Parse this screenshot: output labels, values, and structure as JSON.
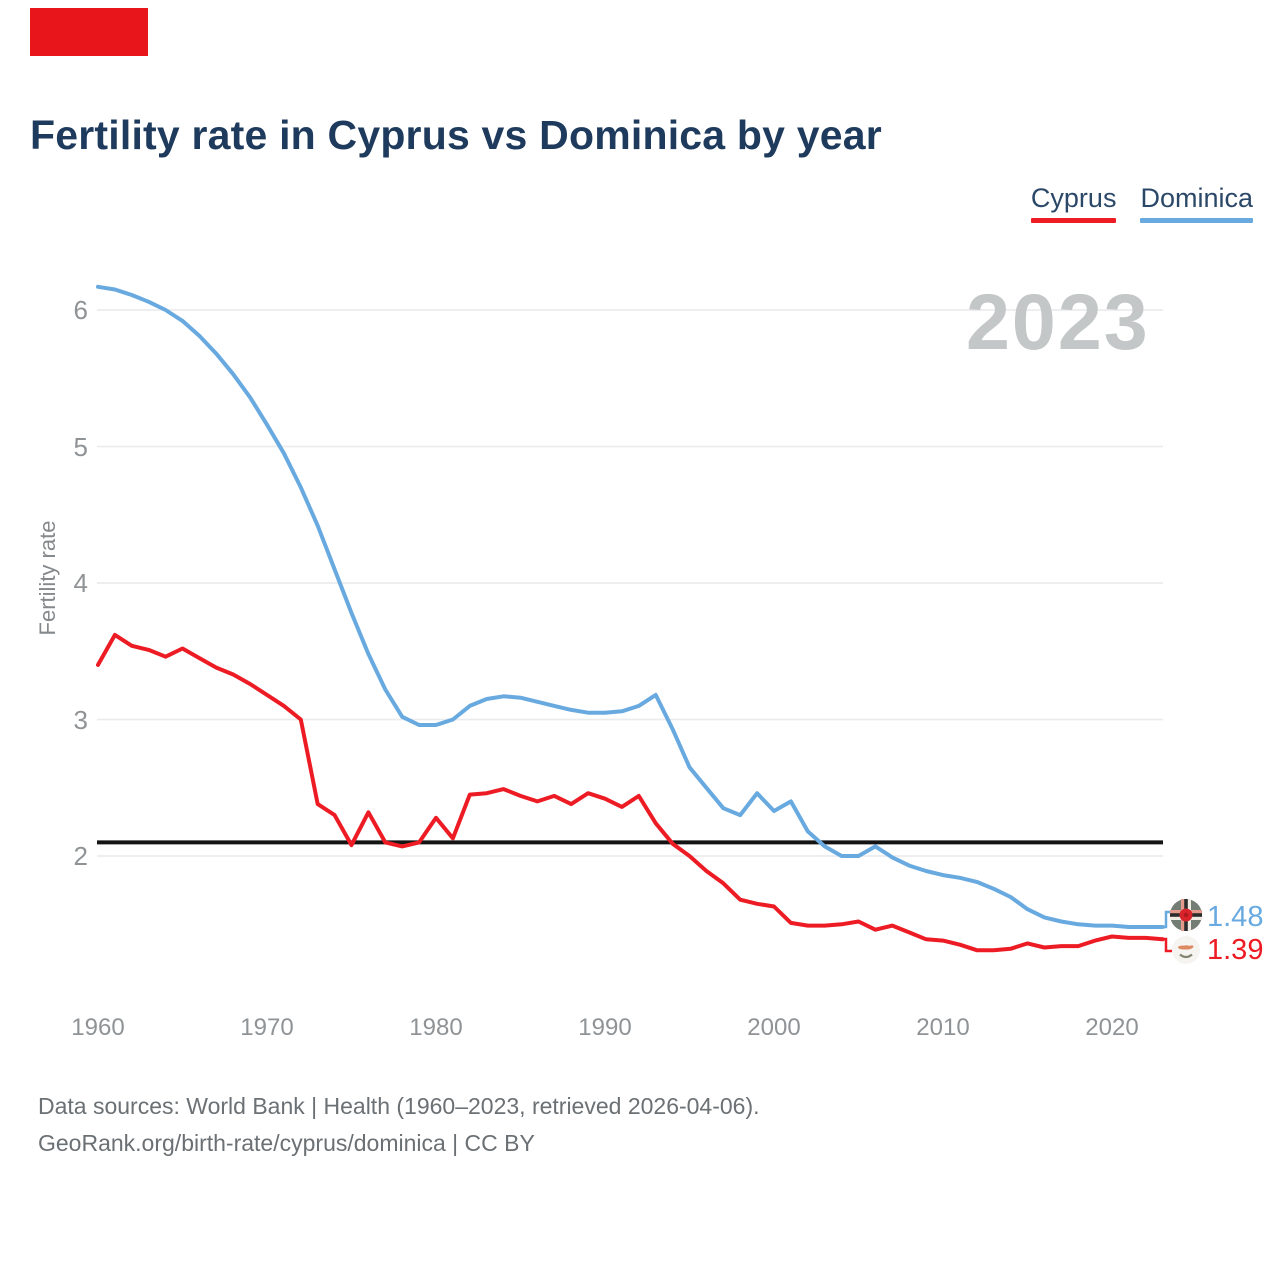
{
  "title": "Fertility rate in Cyprus vs Dominica by year",
  "watermark": "2023",
  "legend": {
    "items": [
      {
        "label": "Cyprus",
        "color": "#ed1c24"
      },
      {
        "label": "Dominica",
        "color": "#68aae0"
      }
    ]
  },
  "footer": {
    "line1": "Data sources: World Bank | Health (1960–2023, retrieved 2026-04-06).",
    "line2": "GeoRank.org/birth-rate/cyprus/dominica | CC BY"
  },
  "colors": {
    "title_text": "#1e3a5c",
    "cyprus_red": "#ed1c24",
    "dominica_blue": "#68aae0",
    "reference_line": "#141414",
    "gridline": "#ebecee",
    "watermark_gray": "#c4c7c7",
    "tick_gray": "#8f9396",
    "top_left_marker_red": "#e8151b"
  },
  "chart_data": {
    "type": "line",
    "title": "Fertility rate in Cyprus vs Dominica by year",
    "x_label": "",
    "y_label": "Fertility rate",
    "grid": "horizontal",
    "legend_position": "top-right",
    "ylim": [
      1.3,
      6.3
    ],
    "yticks": [
      2,
      3,
      4,
      5,
      6
    ],
    "xticks": [
      1960,
      1970,
      1980,
      1990,
      2000,
      2010,
      2020
    ],
    "years": {
      "start": 1960,
      "end": 2023
    },
    "reference_line": 2.1,
    "series": [
      {
        "name": "Cyprus",
        "color": "#ed1c24",
        "end_label": "1.39",
        "end_flag": "cyprus-flag",
        "values": [
          3.4,
          3.62,
          3.54,
          3.51,
          3.46,
          3.52,
          3.45,
          3.38,
          3.33,
          3.26,
          3.18,
          3.1,
          3.0,
          2.38,
          2.3,
          2.08,
          2.32,
          2.1,
          2.07,
          2.1,
          2.28,
          2.13,
          2.45,
          2.46,
          2.49,
          2.44,
          2.4,
          2.44,
          2.38,
          2.46,
          2.42,
          2.36,
          2.44,
          2.24,
          2.09,
          2.0,
          1.89,
          1.8,
          1.68,
          1.65,
          1.63,
          1.51,
          1.49,
          1.49,
          1.5,
          1.52,
          1.46,
          1.49,
          1.44,
          1.39,
          1.38,
          1.35,
          1.31,
          1.31,
          1.32,
          1.36,
          1.33,
          1.34,
          1.34,
          1.38,
          1.41,
          1.4,
          1.4,
          1.39
        ]
      },
      {
        "name": "Dominica",
        "color": "#68aae0",
        "end_label": "1.48",
        "end_flag": "dominica-flag",
        "values": [
          6.17,
          6.15,
          6.11,
          6.06,
          6.0,
          5.92,
          5.81,
          5.68,
          5.53,
          5.36,
          5.16,
          4.95,
          4.7,
          4.42,
          4.1,
          3.78,
          3.48,
          3.22,
          3.02,
          2.96,
          2.96,
          3.0,
          3.1,
          3.15,
          3.17,
          3.16,
          3.13,
          3.1,
          3.07,
          3.05,
          3.05,
          3.06,
          3.1,
          3.18,
          2.93,
          2.65,
          2.5,
          2.35,
          2.3,
          2.46,
          2.33,
          2.4,
          2.18,
          2.07,
          2.0,
          2.0,
          2.07,
          1.99,
          1.93,
          1.89,
          1.86,
          1.84,
          1.81,
          1.76,
          1.7,
          1.61,
          1.55,
          1.52,
          1.5,
          1.49,
          1.49,
          1.48,
          1.48,
          1.48
        ]
      }
    ]
  }
}
